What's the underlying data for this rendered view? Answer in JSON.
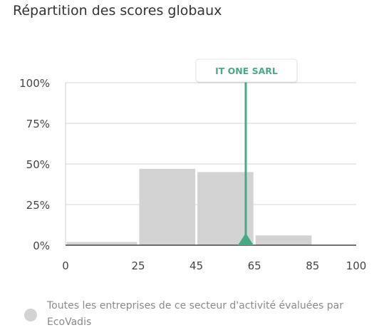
{
  "title": "Répartition des scores globaux",
  "chart_data": {
    "type": "bar",
    "bins": [
      {
        "from": 0,
        "to": 25,
        "value": 2
      },
      {
        "from": 25,
        "to": 45,
        "value": 47
      },
      {
        "from": 45,
        "to": 65,
        "value": 45
      },
      {
        "from": 65,
        "to": 85,
        "value": 6
      },
      {
        "from": 85,
        "to": 100,
        "value": 0
      }
    ],
    "x_ticks": [
      "0",
      "25",
      "45",
      "65",
      "85",
      "100"
    ],
    "y_ticks": [
      "0%",
      "25%",
      "50%",
      "75%",
      "100%"
    ],
    "ylim": [
      0,
      100
    ],
    "series_color": "#d3d3d3",
    "marker": {
      "label": "IT ONE SARL",
      "value": 62,
      "color": "#4aa985"
    },
    "legend": "Toutes les entreprises de ce secteur d'activité évaluées par EcoVadis",
    "grid": true
  }
}
